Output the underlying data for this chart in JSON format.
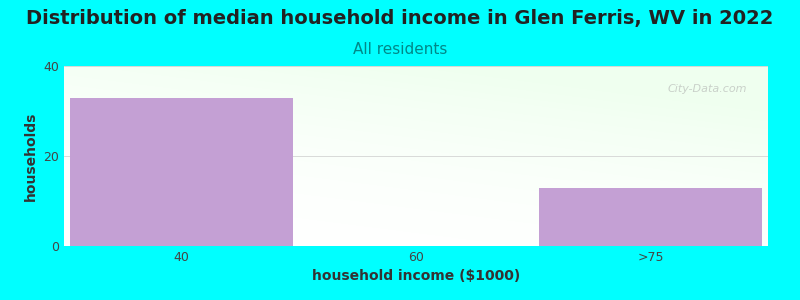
{
  "title": "Distribution of median household income in Glen Ferris, WV in 2022",
  "subtitle": "All residents",
  "subtitle_color": "#008888",
  "xlabel": "household income ($1000)",
  "ylabel": "households",
  "categories": [
    "40",
    "60",
    ">75"
  ],
  "values": [
    33,
    0,
    13
  ],
  "bar_color": "#c4a0d4",
  "bar_alpha": 1.0,
  "ylim": [
    0,
    40
  ],
  "yticks": [
    0,
    20,
    40
  ],
  "background_color": "#00ffff",
  "plot_bg_color_left": "#ffffff",
  "plot_bg_color_right_top": "#e0f0e0",
  "watermark": "City-Data.com",
  "title_fontsize": 14,
  "subtitle_fontsize": 11,
  "label_fontsize": 10,
  "tick_fontsize": 9
}
